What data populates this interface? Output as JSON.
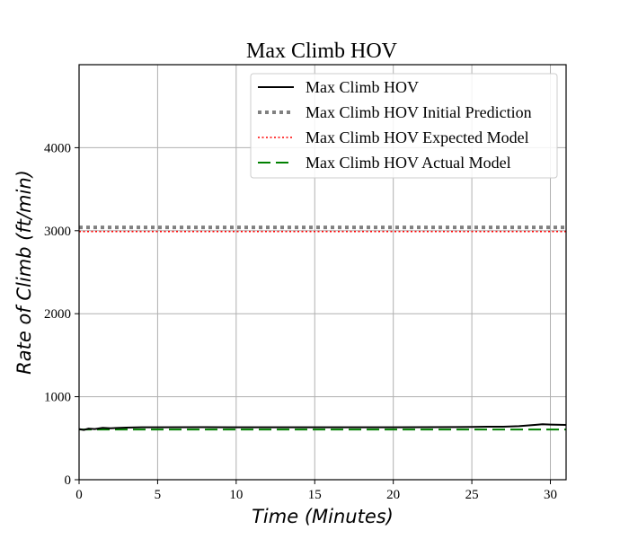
{
  "chart_data": {
    "type": "line",
    "title": "Max Climb HOV",
    "xlabel": "Time (Minutes)",
    "ylabel": "Rate of Climb (ft/min)",
    "xlim": [
      0,
      31
    ],
    "ylim": [
      0,
      5000
    ],
    "xticks": [
      0,
      5,
      10,
      15,
      20,
      25,
      30
    ],
    "yticks": [
      0,
      1000,
      2000,
      3000,
      4000
    ],
    "grid": true,
    "legend_position": "top-right",
    "series": [
      {
        "name": "Max Climb HOV",
        "style": "solid",
        "color": "#000000",
        "x": [
          0,
          0.3,
          0.6,
          1,
          1.5,
          2,
          3,
          4,
          5,
          8,
          10,
          15,
          20,
          22,
          25,
          26,
          27,
          28,
          29,
          29.5,
          30,
          31
        ],
        "y": [
          610,
          600,
          615,
          610,
          625,
          620,
          628,
          632,
          632,
          633,
          632,
          632,
          632,
          633,
          636,
          638,
          638,
          645,
          660,
          668,
          664,
          660
        ]
      },
      {
        "name": "Max Climb HOV Initial Prediction",
        "style": "dotted-thick",
        "color": "#808080",
        "x": [
          0,
          31
        ],
        "y": [
          3040,
          3040
        ]
      },
      {
        "name": "Max Climb HOV Expected Model",
        "style": "dotted",
        "color": "#ff0000",
        "x": [
          0,
          31
        ],
        "y": [
          2990,
          2990
        ]
      },
      {
        "name": "Max Climb HOV Actual Model",
        "style": "dashed",
        "color": "#008000",
        "x": [
          0,
          31
        ],
        "y": [
          605,
          605
        ]
      }
    ]
  }
}
